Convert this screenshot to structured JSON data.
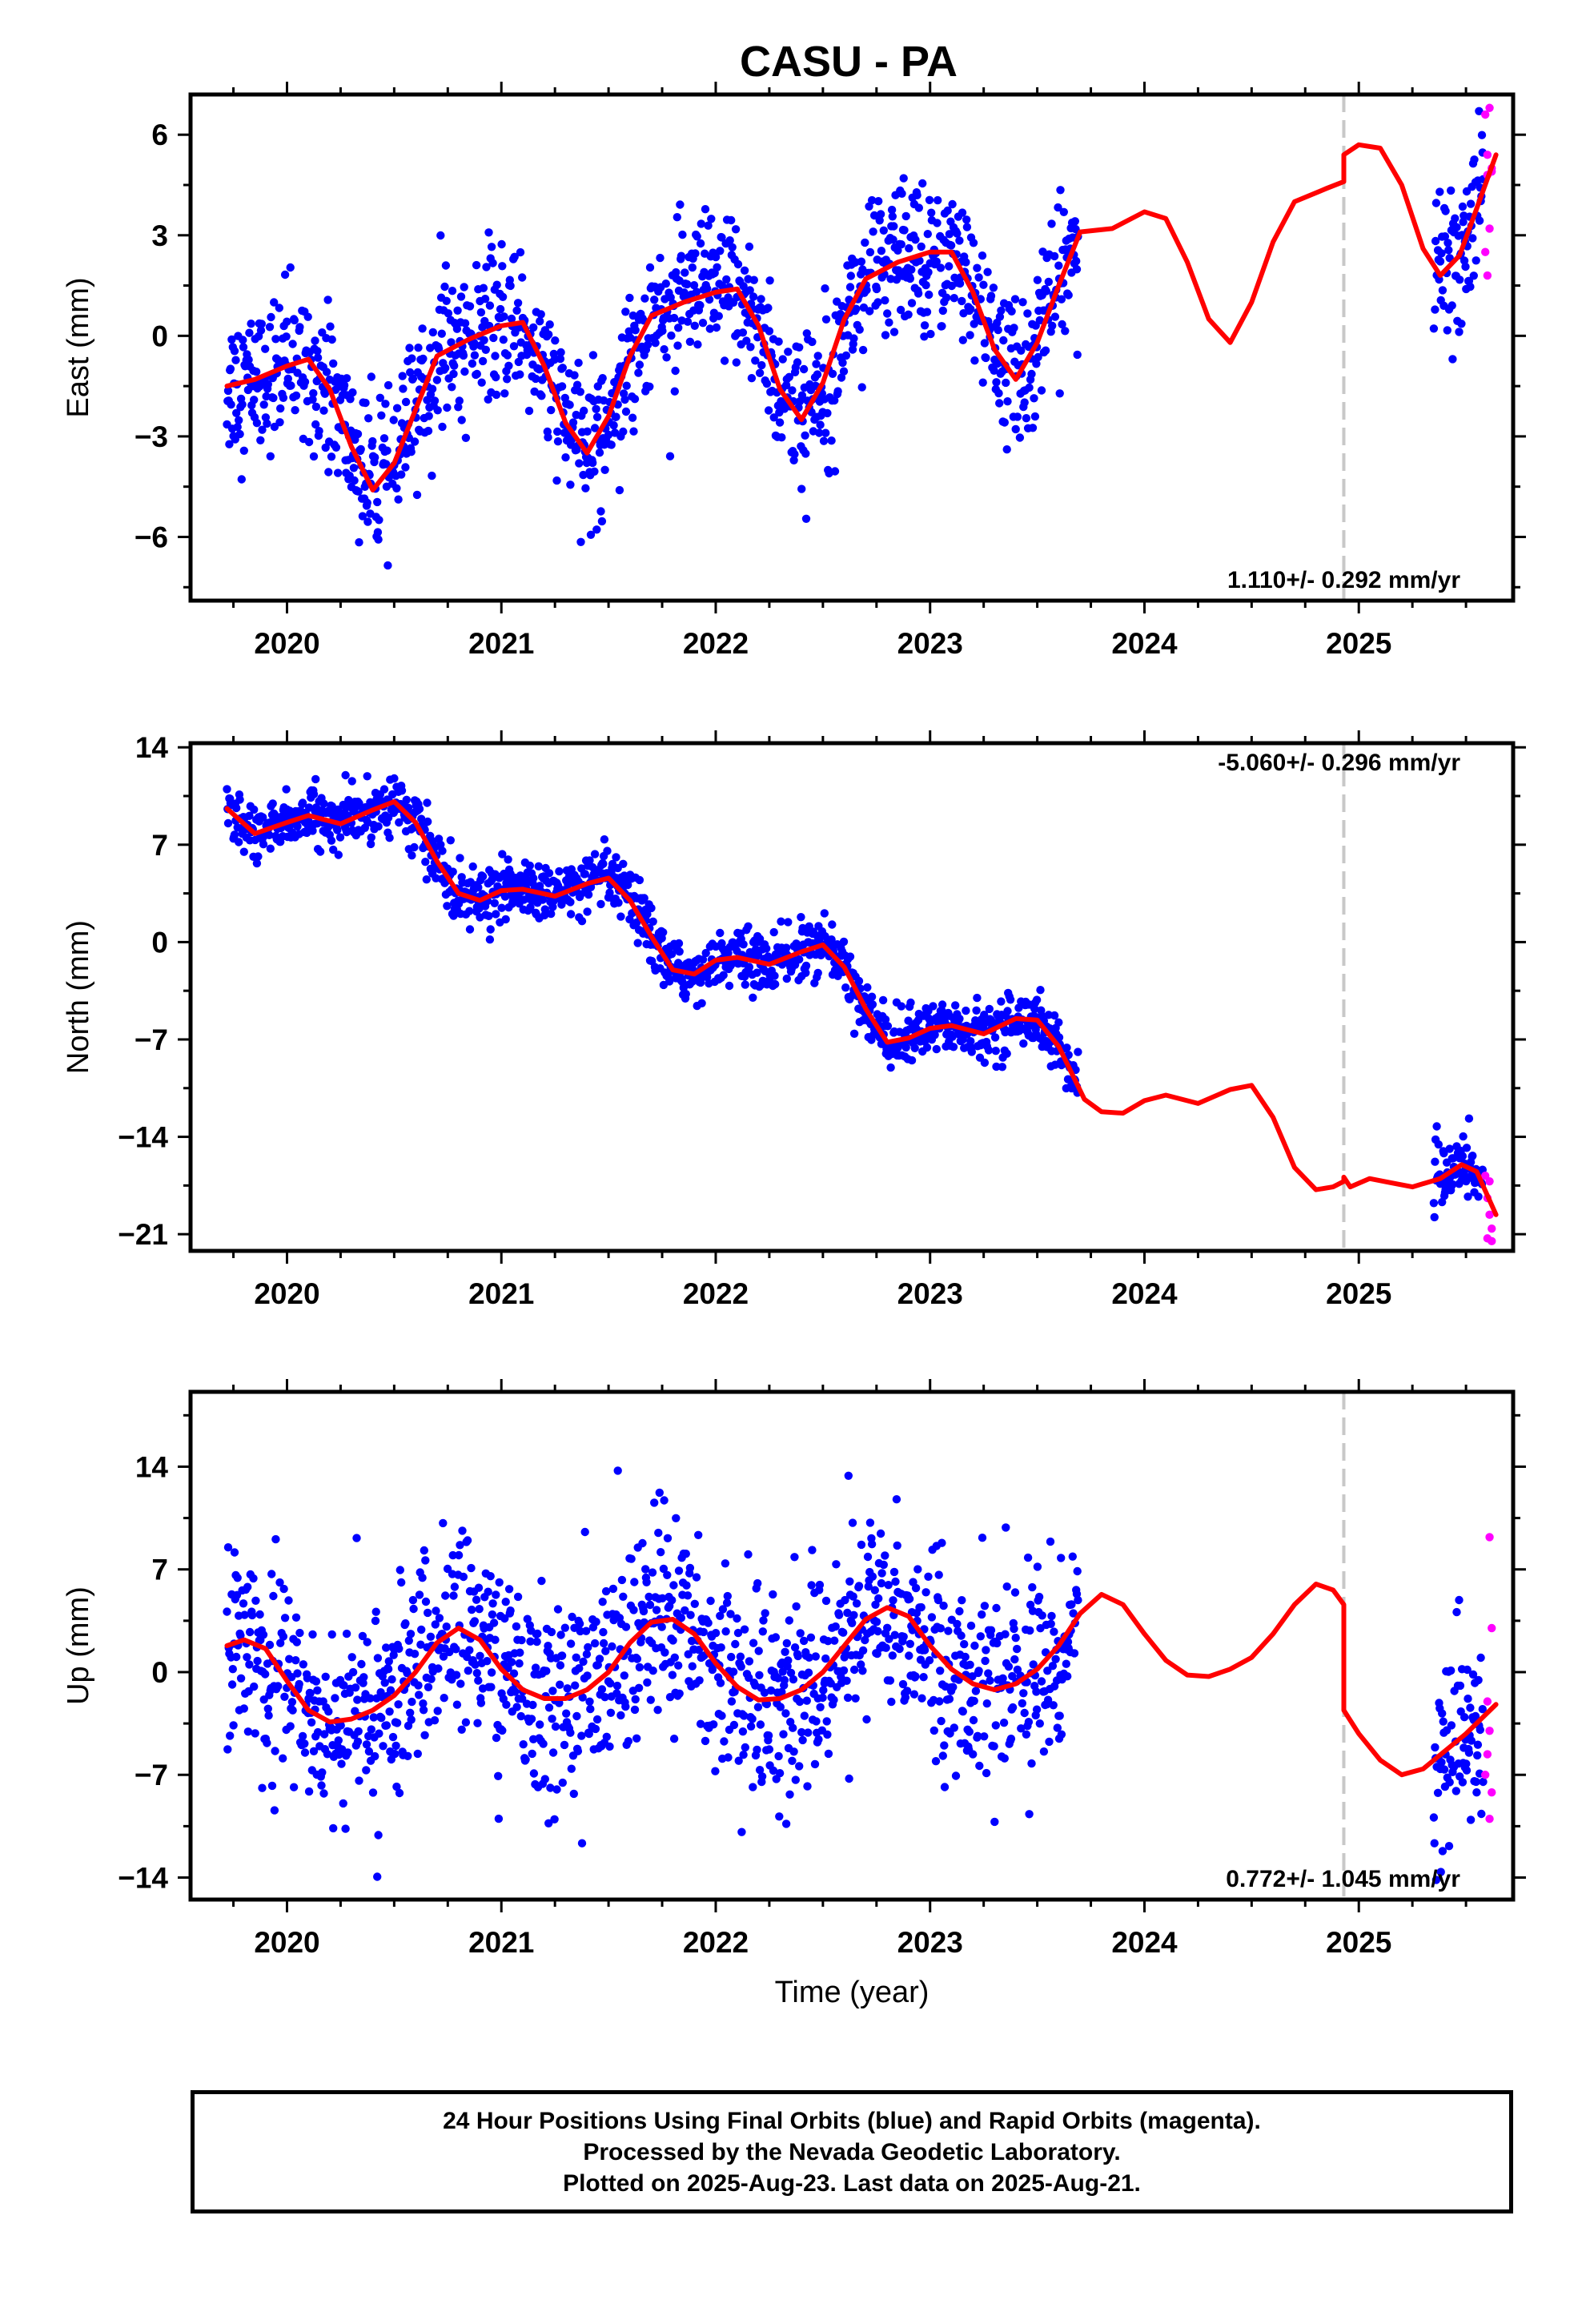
{
  "title": "CASU - PA",
  "footer": {
    "line1": "24 Hour Positions Using Final Orbits (blue) and Rapid Orbits (magenta).",
    "line2": "Processed by the Nevada Geodetic Laboratory.",
    "line3": "Plotted on 2025-Aug-23. Last data on 2025-Aug-21."
  },
  "colors": {
    "final_orbits": "#0000ff",
    "rapid_orbits": "#ff00ff",
    "model_fit": "#ff0000",
    "break_line": "#c8c8c8"
  },
  "chart_data": [
    {
      "type": "scatter",
      "ylabel": "East (mm)",
      "xlabel": "",
      "xlim": [
        2019.55,
        2025.72
      ],
      "ylim": [
        -7.9,
        7.2
      ],
      "xticks": [
        2020,
        2021,
        2022,
        2023,
        2024,
        2025
      ],
      "xtick_labels": [
        "2020",
        "2021",
        "2022",
        "2023",
        "2024",
        "2025"
      ],
      "yticks": [
        -6,
        -3,
        0,
        3,
        6
      ],
      "ytick_labels": [
        "−6",
        "−3",
        "0",
        "3",
        "6"
      ],
      "rate_label": "1.110+/- 0.292 mm/yr",
      "rate_position": "bottom-right",
      "break_epoch": 2024.93,
      "final_data_range": [
        [
          2019.72,
          2023.69
        ],
        [
          2025.35,
          2025.58
        ]
      ],
      "rapid_data_range": [
        2025.58,
        2025.64
      ],
      "rapid_points": [
        [
          2025.59,
          6.6
        ],
        [
          2025.61,
          6.8
        ],
        [
          2025.6,
          5.4
        ],
        [
          2025.62,
          5.0
        ],
        [
          2025.6,
          4.8
        ],
        [
          2025.61,
          3.2
        ],
        [
          2025.59,
          2.5
        ],
        [
          2025.6,
          1.8
        ],
        [
          2025.62,
          4.9
        ]
      ],
      "model_curve": [
        [
          2019.72,
          -1.5
        ],
        [
          2019.85,
          -1.3
        ],
        [
          2020.0,
          -0.9
        ],
        [
          2020.1,
          -0.7
        ],
        [
          2020.2,
          -1.6
        ],
        [
          2020.3,
          -3.3
        ],
        [
          2020.4,
          -4.6
        ],
        [
          2020.5,
          -3.8
        ],
        [
          2020.6,
          -2.2
        ],
        [
          2020.7,
          -0.6
        ],
        [
          2020.85,
          -0.1
        ],
        [
          2021.0,
          0.3
        ],
        [
          2021.1,
          0.4
        ],
        [
          2021.2,
          -0.9
        ],
        [
          2021.3,
          -2.6
        ],
        [
          2021.4,
          -3.5
        ],
        [
          2021.5,
          -2.4
        ],
        [
          2021.6,
          -0.6
        ],
        [
          2021.7,
          0.6
        ],
        [
          2021.85,
          1.0
        ],
        [
          2022.0,
          1.3
        ],
        [
          2022.1,
          1.4
        ],
        [
          2022.2,
          0.3
        ],
        [
          2022.3,
          -1.6
        ],
        [
          2022.4,
          -2.5
        ],
        [
          2022.5,
          -1.4
        ],
        [
          2022.6,
          0.5
        ],
        [
          2022.7,
          1.7
        ],
        [
          2022.85,
          2.2
        ],
        [
          2023.0,
          2.5
        ],
        [
          2023.1,
          2.5
        ],
        [
          2023.2,
          1.3
        ],
        [
          2023.3,
          -0.4
        ],
        [
          2023.4,
          -1.3
        ],
        [
          2023.5,
          -0.2
        ],
        [
          2023.6,
          1.5
        ],
        [
          2023.7,
          3.1
        ],
        [
          2023.85,
          3.2
        ],
        [
          2024.0,
          3.7
        ],
        [
          2024.1,
          3.5
        ],
        [
          2024.2,
          2.2
        ],
        [
          2024.3,
          0.5
        ],
        [
          2024.4,
          -0.2
        ],
        [
          2024.5,
          1.0
        ],
        [
          2024.6,
          2.8
        ],
        [
          2024.7,
          4.0
        ],
        [
          2024.85,
          4.4
        ],
        [
          2024.93,
          4.6
        ],
        [
          2024.93,
          5.4
        ],
        [
          2025.0,
          5.7
        ],
        [
          2025.1,
          5.6
        ],
        [
          2025.2,
          4.5
        ],
        [
          2025.3,
          2.6
        ],
        [
          2025.38,
          1.8
        ],
        [
          2025.47,
          2.4
        ],
        [
          2025.55,
          3.8
        ],
        [
          2025.64,
          5.4
        ]
      ],
      "residual_scatter_mm": 1.1
    },
    {
      "type": "scatter",
      "ylabel": "North (mm)",
      "xlabel": "",
      "xlim": [
        2019.55,
        2025.72
      ],
      "ylim": [
        -22.2,
        14.3
      ],
      "xticks": [
        2020,
        2021,
        2022,
        2023,
        2024,
        2025
      ],
      "xtick_labels": [
        "2020",
        "2021",
        "2022",
        "2023",
        "2024",
        "2025"
      ],
      "yticks": [
        -21,
        -14,
        -7,
        0,
        7,
        14
      ],
      "ytick_labels": [
        "−21",
        "−14",
        "−7",
        "0",
        "7",
        "14"
      ],
      "rate_label": "-5.060+/- 0.296 mm/yr",
      "rate_position": "top-right",
      "break_epoch": 2024.93,
      "final_data_range": [
        [
          2019.72,
          2023.69
        ],
        [
          2025.35,
          2025.58
        ]
      ],
      "rapid_data_range": [
        2025.58,
        2025.64
      ],
      "rapid_points": [
        [
          2025.59,
          -16.8
        ],
        [
          2025.6,
          -18.4
        ],
        [
          2025.61,
          -19.6
        ],
        [
          2025.62,
          -20.6
        ],
        [
          2025.6,
          -21.3
        ],
        [
          2025.62,
          -21.5
        ],
        [
          2025.61,
          -17.2
        ]
      ],
      "model_curve": [
        [
          2019.72,
          9.6
        ],
        [
          2019.85,
          7.8
        ],
        [
          2020.0,
          8.6
        ],
        [
          2020.1,
          9.1
        ],
        [
          2020.25,
          8.5
        ],
        [
          2020.4,
          9.5
        ],
        [
          2020.5,
          10.1
        ],
        [
          2020.6,
          8.6
        ],
        [
          2020.7,
          5.8
        ],
        [
          2020.8,
          3.5
        ],
        [
          2020.9,
          3.0
        ],
        [
          2021.0,
          3.7
        ],
        [
          2021.1,
          3.8
        ],
        [
          2021.25,
          3.3
        ],
        [
          2021.4,
          4.2
        ],
        [
          2021.5,
          4.6
        ],
        [
          2021.6,
          3.0
        ],
        [
          2021.7,
          0.4
        ],
        [
          2021.8,
          -2.0
        ],
        [
          2021.9,
          -2.3
        ],
        [
          2022.0,
          -1.3
        ],
        [
          2022.1,
          -1.1
        ],
        [
          2022.25,
          -1.6
        ],
        [
          2022.4,
          -0.7
        ],
        [
          2022.5,
          -0.2
        ],
        [
          2022.6,
          -1.8
        ],
        [
          2022.7,
          -4.8
        ],
        [
          2022.8,
          -7.2
        ],
        [
          2022.9,
          -6.9
        ],
        [
          2023.0,
          -6.2
        ],
        [
          2023.1,
          -6.0
        ],
        [
          2023.25,
          -6.6
        ],
        [
          2023.4,
          -5.5
        ],
        [
          2023.5,
          -5.6
        ],
        [
          2023.6,
          -7.5
        ],
        [
          2023.72,
          -11.3
        ],
        [
          2023.8,
          -12.2
        ],
        [
          2023.9,
          -12.3
        ],
        [
          2024.0,
          -11.4
        ],
        [
          2024.1,
          -11.0
        ],
        [
          2024.25,
          -11.6
        ],
        [
          2024.4,
          -10.6
        ],
        [
          2024.5,
          -10.3
        ],
        [
          2024.6,
          -12.6
        ],
        [
          2024.7,
          -16.2
        ],
        [
          2024.8,
          -17.8
        ],
        [
          2024.88,
          -17.6
        ],
        [
          2024.93,
          -17.2
        ],
        [
          2024.93,
          -16.9
        ],
        [
          2024.96,
          -17.6
        ],
        [
          2025.05,
          -17.0
        ],
        [
          2025.15,
          -17.3
        ],
        [
          2025.25,
          -17.6
        ],
        [
          2025.38,
          -17.0
        ],
        [
          2025.48,
          -16.0
        ],
        [
          2025.55,
          -16.5
        ],
        [
          2025.64,
          -19.6
        ]
      ],
      "residual_scatter_mm": 1.0
    },
    {
      "type": "scatter",
      "ylabel": "Up (mm)",
      "xlabel": "Time (year)",
      "xlim": [
        2019.55,
        2025.72
      ],
      "ylim": [
        -15.5,
        19.1
      ],
      "xticks": [
        2020,
        2021,
        2022,
        2023,
        2024,
        2025
      ],
      "xtick_labels": [
        "2020",
        "2021",
        "2022",
        "2023",
        "2024",
        "2025"
      ],
      "yticks": [
        -14,
        -7,
        0,
        7,
        14
      ],
      "ytick_labels": [
        "−14",
        "−7",
        "0",
        "7",
        "14"
      ],
      "rate_label": "0.772+/- 1.045 mm/yr",
      "rate_position": "bottom-right",
      "break_epoch": 2024.93,
      "final_data_range": [
        [
          2019.72,
          2023.69
        ],
        [
          2025.35,
          2025.58
        ]
      ],
      "rapid_data_range": [
        2025.58,
        2025.64
      ],
      "rapid_points": [
        [
          2025.61,
          9.2
        ],
        [
          2025.62,
          3.0
        ],
        [
          2025.6,
          -2.0
        ],
        [
          2025.61,
          -4.0
        ],
        [
          2025.6,
          -5.6
        ],
        [
          2025.62,
          -8.2
        ],
        [
          2025.61,
          -10.0
        ],
        [
          2025.59,
          -7.0
        ]
      ],
      "model_curve": [
        [
          2019.72,
          1.8
        ],
        [
          2019.8,
          2.2
        ],
        [
          2019.9,
          1.6
        ],
        [
          2020.0,
          -0.6
        ],
        [
          2020.1,
          -2.6
        ],
        [
          2020.2,
          -3.4
        ],
        [
          2020.3,
          -3.2
        ],
        [
          2020.4,
          -2.6
        ],
        [
          2020.5,
          -1.6
        ],
        [
          2020.6,
          0.0
        ],
        [
          2020.7,
          2.0
        ],
        [
          2020.8,
          3.0
        ],
        [
          2020.9,
          2.2
        ],
        [
          2021.0,
          0.2
        ],
        [
          2021.1,
          -1.2
        ],
        [
          2021.2,
          -1.8
        ],
        [
          2021.3,
          -1.8
        ],
        [
          2021.4,
          -1.2
        ],
        [
          2021.5,
          0.0
        ],
        [
          2021.6,
          2.0
        ],
        [
          2021.7,
          3.4
        ],
        [
          2021.8,
          3.6
        ],
        [
          2021.9,
          2.6
        ],
        [
          2022.0,
          0.6
        ],
        [
          2022.1,
          -1.0
        ],
        [
          2022.2,
          -1.9
        ],
        [
          2022.3,
          -1.8
        ],
        [
          2022.4,
          -1.2
        ],
        [
          2022.5,
          0.0
        ],
        [
          2022.6,
          1.8
        ],
        [
          2022.7,
          3.6
        ],
        [
          2022.8,
          4.4
        ],
        [
          2022.9,
          3.8
        ],
        [
          2023.0,
          1.8
        ],
        [
          2023.1,
          0.2
        ],
        [
          2023.2,
          -0.8
        ],
        [
          2023.3,
          -1.2
        ],
        [
          2023.4,
          -0.8
        ],
        [
          2023.5,
          0.2
        ],
        [
          2023.6,
          1.8
        ],
        [
          2023.7,
          4.0
        ],
        [
          2023.8,
          5.3
        ],
        [
          2023.9,
          4.6
        ],
        [
          2024.0,
          2.6
        ],
        [
          2024.1,
          0.8
        ],
        [
          2024.2,
          -0.2
        ],
        [
          2024.3,
          -0.3
        ],
        [
          2024.4,
          0.2
        ],
        [
          2024.5,
          1.0
        ],
        [
          2024.6,
          2.6
        ],
        [
          2024.7,
          4.6
        ],
        [
          2024.8,
          6.0
        ],
        [
          2024.88,
          5.6
        ],
        [
          2024.93,
          4.6
        ],
        [
          2024.93,
          -2.6
        ],
        [
          2025.0,
          -4.2
        ],
        [
          2025.1,
          -6.0
        ],
        [
          2025.2,
          -7.0
        ],
        [
          2025.3,
          -6.6
        ],
        [
          2025.4,
          -5.4
        ],
        [
          2025.5,
          -4.2
        ],
        [
          2025.64,
          -2.2
        ]
      ],
      "residual_scatter_mm": 3.4
    }
  ]
}
